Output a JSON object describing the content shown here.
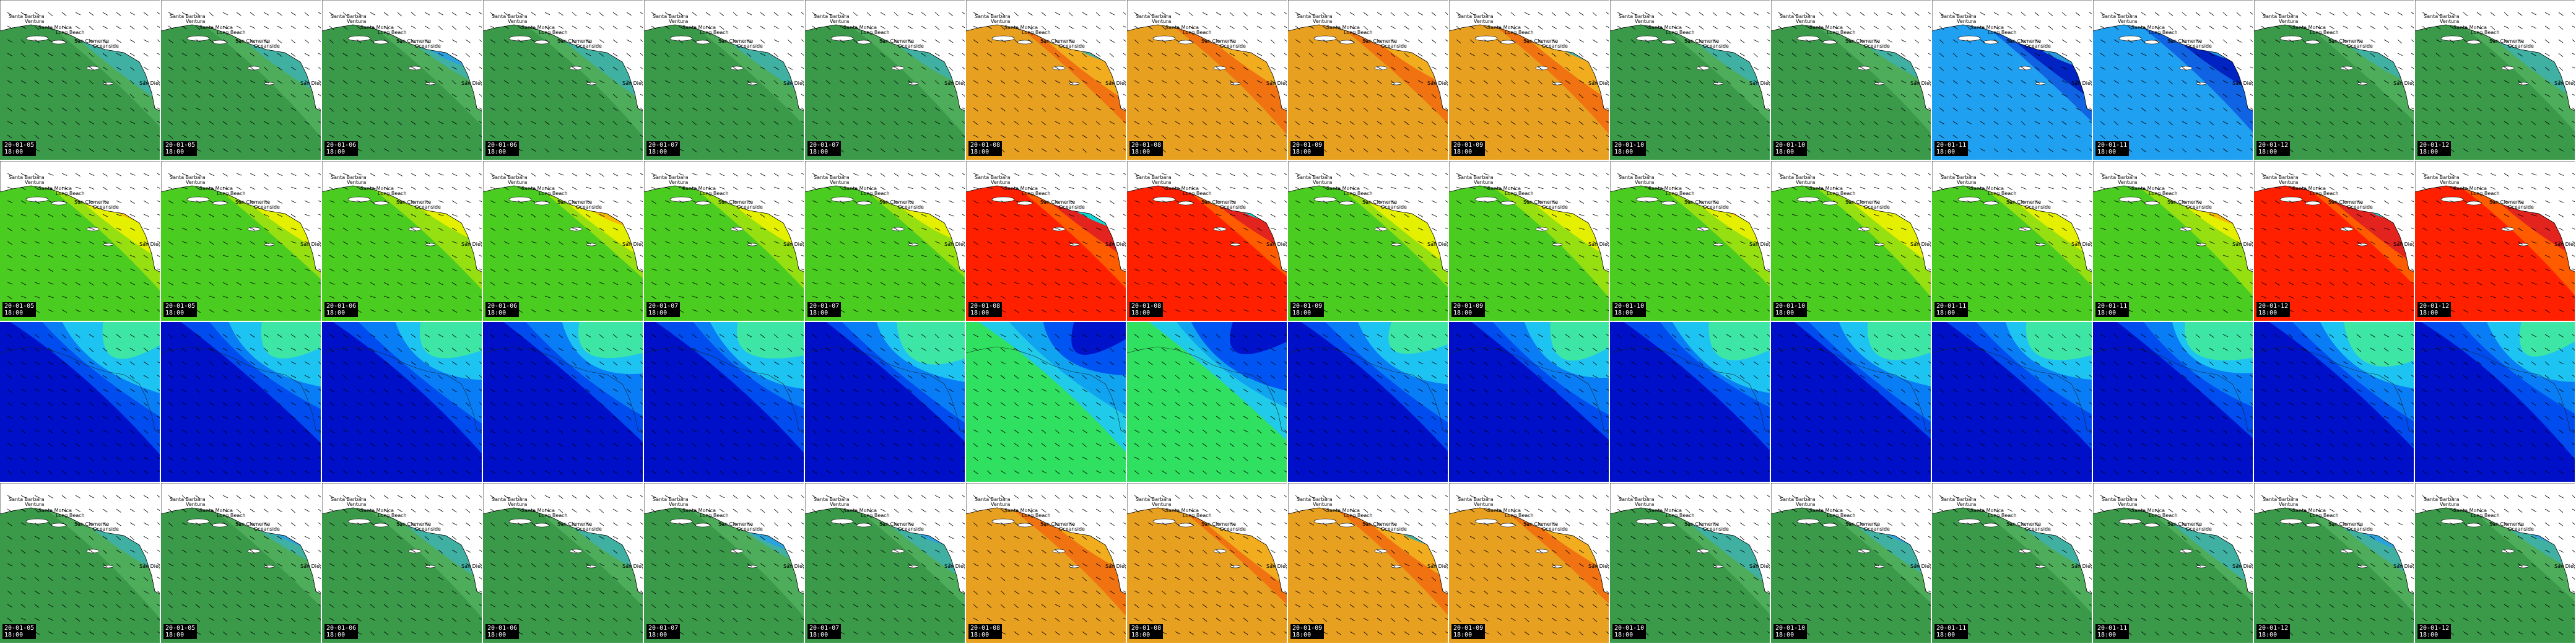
{
  "rows": [
    {
      "palette": "wave",
      "colors": [
        "#3a9a4a",
        "#4fae5c",
        "#3fb0a8",
        "#2aa0e0",
        "#3a7ad0"
      ],
      "tiles": [
        {
          "date": "20-01-05",
          "time": "18:00"
        },
        {
          "date": "20-01-05",
          "time": "18:00"
        },
        {
          "date": "20-01-06",
          "time": "18:00"
        },
        {
          "date": "20-01-06",
          "time": "18:00"
        },
        {
          "date": "20-01-07",
          "time": "18:00"
        },
        {
          "date": "20-01-07",
          "time": "18:00"
        },
        {
          "date": "20-01-08",
          "time": "18:00",
          "warm": true
        },
        {
          "date": "20-01-08",
          "time": "18:00",
          "warm": true
        },
        {
          "date": "20-01-09",
          "time": "18:00",
          "warm": true
        },
        {
          "date": "20-01-09",
          "time": "18:00",
          "warm": true
        },
        {
          "date": "20-01-10",
          "time": "18:00"
        },
        {
          "date": "20-01-10",
          "time": "18:00"
        },
        {
          "date": "20-01-11",
          "time": "18:00",
          "cool": true
        },
        {
          "date": "20-01-11",
          "time": "18:00",
          "cool": true
        },
        {
          "date": "20-01-12",
          "time": "18:00"
        },
        {
          "date": "20-01-12",
          "time": "18:00"
        }
      ]
    },
    {
      "palette": "period",
      "colors": [
        "#4bcc20",
        "#9adf10",
        "#e8f000",
        "#f7b500",
        "#f06400"
      ],
      "tiles": [
        {
          "date": "20-01-05",
          "time": "18:00"
        },
        {
          "date": "20-01-05",
          "time": "18:00"
        },
        {
          "date": "20-01-06",
          "time": "18:00"
        },
        {
          "date": "20-01-06",
          "time": "18:00"
        },
        {
          "date": "20-01-07",
          "time": "18:00"
        },
        {
          "date": "20-01-07",
          "time": "18:00"
        },
        {
          "date": "20-01-08",
          "time": "18:00",
          "hot": true
        },
        {
          "date": "20-01-08",
          "time": "18:00",
          "hot": true
        },
        {
          "date": "20-01-09",
          "time": "18:00"
        },
        {
          "date": "20-01-09",
          "time": "18:00"
        },
        {
          "date": "20-01-10",
          "time": "18:00"
        },
        {
          "date": "20-01-10",
          "time": "18:00"
        },
        {
          "date": "20-01-11",
          "time": "18:00"
        },
        {
          "date": "20-01-11",
          "time": "18:00"
        },
        {
          "date": "20-01-12",
          "time": "18:00",
          "hot": true
        },
        {
          "date": "20-01-12",
          "time": "18:00",
          "hot": true
        }
      ]
    },
    {
      "palette": "wind",
      "colors": [
        "#0010c8",
        "#0050f0",
        "#0a7ff5",
        "#20c8f0",
        "#40e8a0"
      ],
      "tiles": [
        {
          "date": "",
          "time": ""
        },
        {
          "date": "",
          "time": ""
        },
        {
          "date": "",
          "time": ""
        },
        {
          "date": "",
          "time": ""
        },
        {
          "date": "",
          "time": ""
        },
        {
          "date": "",
          "time": ""
        },
        {
          "date": "",
          "time": "",
          "bright": true
        },
        {
          "date": "",
          "time": "",
          "bright": true
        },
        {
          "date": "",
          "time": ""
        },
        {
          "date": "",
          "time": ""
        },
        {
          "date": "",
          "time": ""
        },
        {
          "date": "",
          "time": ""
        },
        {
          "date": "",
          "time": ""
        },
        {
          "date": "",
          "time": ""
        },
        {
          "date": "",
          "time": ""
        },
        {
          "date": "",
          "time": ""
        }
      ]
    },
    {
      "palette": "wave",
      "colors": [
        "#3a9a4a",
        "#4fae5c",
        "#3fb0a8",
        "#2aa0e0",
        "#3a7ad0"
      ],
      "tiles": [
        {
          "date": "20-01-05",
          "time": "18:00"
        },
        {
          "date": "20-01-05",
          "time": "18:00"
        },
        {
          "date": "20-01-06",
          "time": "18:00"
        },
        {
          "date": "20-01-06",
          "time": "18:00"
        },
        {
          "date": "20-01-07",
          "time": "18:00"
        },
        {
          "date": "20-01-07",
          "time": "18:00"
        },
        {
          "date": "20-01-08",
          "time": "18:00",
          "warm": true
        },
        {
          "date": "20-01-08",
          "time": "18:00",
          "warm": true
        },
        {
          "date": "20-01-09",
          "time": "18:00",
          "warm": true
        },
        {
          "date": "20-01-09",
          "time": "18:00",
          "warm": true
        },
        {
          "date": "20-01-10",
          "time": "18:00"
        },
        {
          "date": "20-01-10",
          "time": "18:00"
        },
        {
          "date": "20-01-11",
          "time": "18:00"
        },
        {
          "date": "20-01-11",
          "time": "18:00"
        },
        {
          "date": "20-01-12",
          "time": "18:00"
        },
        {
          "date": "20-01-12",
          "time": "18:00"
        }
      ]
    }
  ],
  "places": [
    "Santa Barbara",
    "Ventura",
    "Santa Monica",
    "Long Beach",
    "San Clemente",
    "Oceanside",
    "San Diego"
  ],
  "warm_colors": [
    "#e8a020",
    "#f07010",
    "#f0b020",
    "#c8c830"
  ],
  "hot_colors": [
    "#ff2000",
    "#e02020",
    "#ff6000",
    "#00e0e0"
  ],
  "bright_colors": [
    "#30e060",
    "#20c8f0",
    "#10a0f0"
  ],
  "cool_colors": [
    "#0020c0",
    "#1060e0",
    "#20a0f0"
  ]
}
